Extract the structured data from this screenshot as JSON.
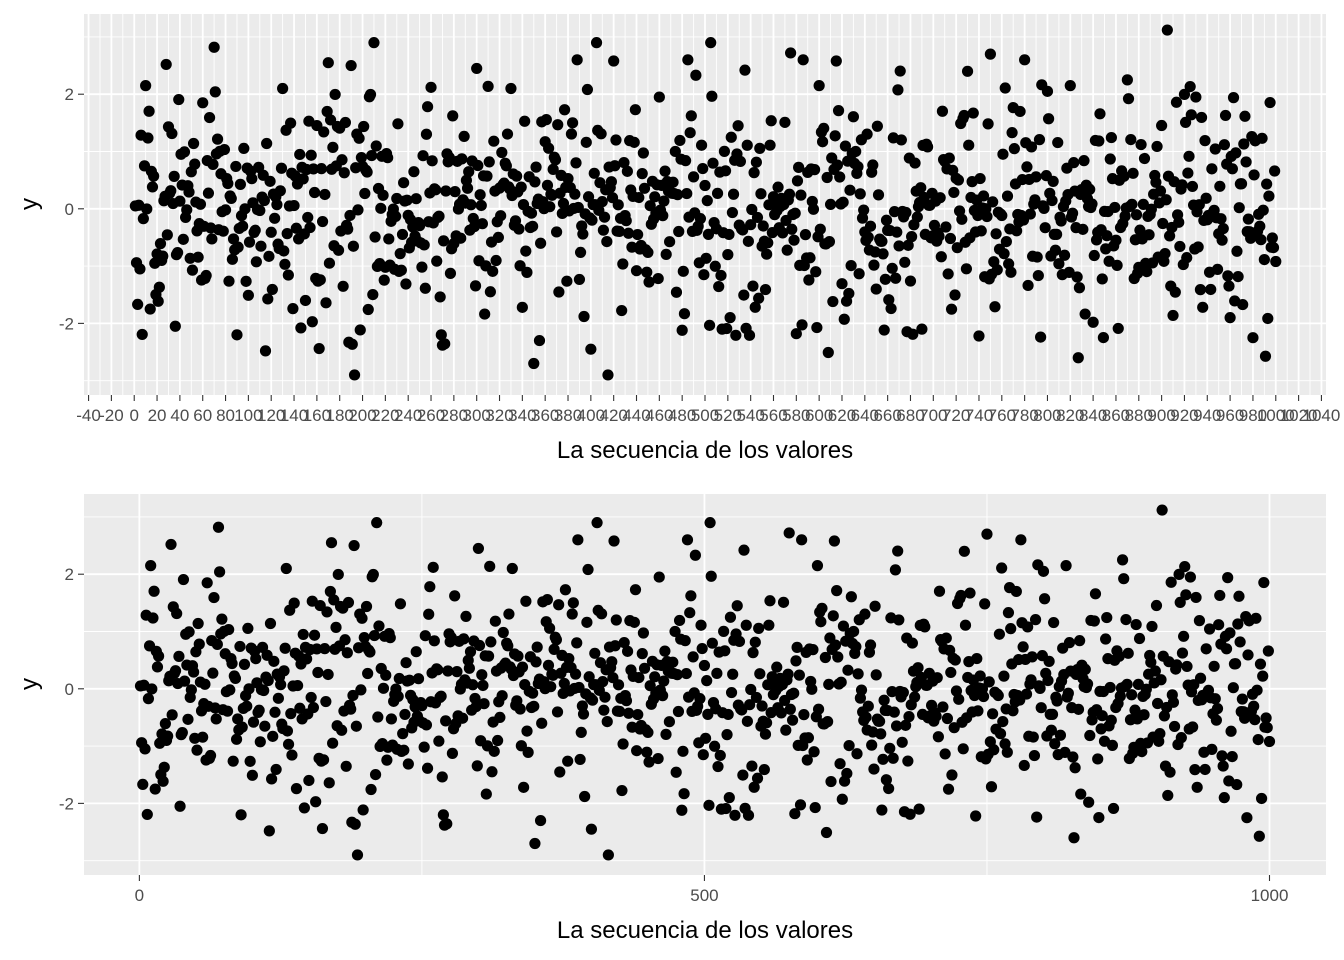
{
  "chart_data": [
    {
      "type": "scatter",
      "xlabel": "La secuencia de los valores",
      "ylabel": "y",
      "xlim": [
        -44,
        1044
      ],
      "ylim": [
        -3.25,
        3.4
      ],
      "x_ticks": [
        -40,
        -20,
        0,
        20,
        40,
        60,
        80,
        100,
        120,
        140,
        160,
        180,
        200,
        220,
        240,
        260,
        280,
        300,
        320,
        340,
        360,
        380,
        400,
        420,
        440,
        460,
        480,
        500,
        520,
        540,
        560,
        580,
        600,
        620,
        640,
        660,
        680,
        700,
        720,
        740,
        760,
        780,
        800,
        820,
        840,
        860,
        880,
        900,
        920,
        940,
        960,
        980,
        1000,
        1020,
        1040
      ],
      "x_tick_labels": [
        "-40",
        "-20",
        "0",
        "20",
        "40",
        "60",
        "80",
        "100",
        "120",
        "140",
        "160",
        "180",
        "200",
        "220",
        "240",
        "260",
        "280",
        "300",
        "320",
        "340",
        "360",
        "380",
        "400",
        "420",
        "440",
        "460",
        "480",
        "500",
        "520",
        "540",
        "560",
        "580",
        "600",
        "620",
        "640",
        "660",
        "680",
        "700",
        "720",
        "740",
        "760",
        "780",
        "800",
        "820",
        "840",
        "860",
        "880",
        "900",
        "920",
        "940",
        "960",
        "980",
        "1000",
        "1020",
        "1040"
      ],
      "x_minor_step": 10,
      "y_ticks": [
        -2,
        0,
        2
      ],
      "y_tick_labels": [
        "-2",
        "0",
        "2"
      ],
      "grid": true,
      "n_points": 1000,
      "series": [
        {
          "x_range": [
            1,
            1000
          ],
          "y_sample": [
            [
              1,
              0.05
            ],
            [
              5,
              -1.05
            ],
            [
              10,
              2.15
            ],
            [
              14,
              -1.75
            ],
            [
              24,
              -0.9
            ],
            [
              28,
              2.52
            ],
            [
              36,
              -2.05
            ],
            [
              60,
              1.85
            ],
            [
              70,
              2.82
            ],
            [
              90,
              -2.2
            ],
            [
              115,
              -2.48
            ],
            [
              130,
              2.1
            ],
            [
              150,
              -1.6
            ],
            [
              170,
              2.55
            ],
            [
              190,
              2.5
            ],
            [
              193,
              -2.9
            ],
            [
              210,
              2.9
            ],
            [
              260,
              2.12
            ],
            [
              270,
              -2.38
            ],
            [
              300,
              2.45
            ],
            [
              330,
              2.1
            ],
            [
              340,
              -1.72
            ],
            [
              350,
              -2.7
            ],
            [
              355,
              -2.3
            ],
            [
              400,
              -2.45
            ],
            [
              405,
              2.9
            ],
            [
              415,
              -2.9
            ],
            [
              420,
              2.58
            ],
            [
              460,
              1.95
            ],
            [
              480,
              -2.12
            ],
            [
              485,
              2.6
            ],
            [
              505,
              2.9
            ],
            [
              515,
              -2.1
            ],
            [
              535,
              2.42
            ],
            [
              575,
              2.72
            ],
            [
              580,
              -2.18
            ],
            [
              600,
              2.15
            ],
            [
              690,
              -2.1
            ],
            [
              730,
              2.4
            ],
            [
              740,
              -2.22
            ],
            [
              750,
              2.7
            ],
            [
              780,
              2.6
            ],
            [
              800,
              2.05
            ],
            [
              820,
              2.15
            ],
            [
              840,
              -1.98
            ],
            [
              870,
              2.25
            ],
            [
              905,
              3.12
            ],
            [
              930,
              1.95
            ],
            [
              960,
              -1.9
            ],
            [
              980,
              -2.25
            ],
            [
              1000,
              -0.92
            ]
          ]
        }
      ]
    },
    {
      "type": "scatter",
      "xlabel": "La secuencia de los valores",
      "ylabel": "y",
      "xlim": [
        -49,
        1050
      ],
      "ylim": [
        -3.25,
        3.4
      ],
      "x_ticks": [
        0,
        500,
        1000
      ],
      "x_tick_labels": [
        "0",
        "500",
        "1000"
      ],
      "x_minor_step": 250,
      "y_ticks": [
        -2,
        0,
        2
      ],
      "y_tick_labels": [
        "-2",
        "0",
        "2"
      ],
      "grid": true,
      "n_points": 1000,
      "series": [
        {
          "x_range": [
            1,
            1000
          ],
          "y_sample": [
            [
              1,
              0.05
            ],
            [
              5,
              -1.05
            ],
            [
              10,
              2.15
            ],
            [
              14,
              -1.75
            ],
            [
              24,
              -0.9
            ],
            [
              28,
              2.52
            ],
            [
              36,
              -2.05
            ],
            [
              60,
              1.85
            ],
            [
              70,
              2.82
            ],
            [
              90,
              -2.2
            ],
            [
              115,
              -2.48
            ],
            [
              130,
              2.1
            ],
            [
              150,
              -1.6
            ],
            [
              170,
              2.55
            ],
            [
              190,
              2.5
            ],
            [
              193,
              -2.9
            ],
            [
              210,
              2.9
            ],
            [
              260,
              2.12
            ],
            [
              270,
              -2.38
            ],
            [
              300,
              2.45
            ],
            [
              330,
              2.1
            ],
            [
              340,
              -1.72
            ],
            [
              350,
              -2.7
            ],
            [
              355,
              -2.3
            ],
            [
              400,
              -2.45
            ],
            [
              405,
              2.9
            ],
            [
              415,
              -2.9
            ],
            [
              420,
              2.58
            ],
            [
              460,
              1.95
            ],
            [
              480,
              -2.12
            ],
            [
              485,
              2.6
            ],
            [
              505,
              2.9
            ],
            [
              515,
              -2.1
            ],
            [
              535,
              2.42
            ],
            [
              575,
              2.72
            ],
            [
              580,
              -2.18
            ],
            [
              600,
              2.15
            ],
            [
              690,
              -2.1
            ],
            [
              730,
              2.4
            ],
            [
              740,
              -2.22
            ],
            [
              750,
              2.7
            ],
            [
              780,
              2.6
            ],
            [
              800,
              2.05
            ],
            [
              820,
              2.15
            ],
            [
              840,
              -1.98
            ],
            [
              870,
              2.25
            ],
            [
              905,
              3.12
            ],
            [
              930,
              1.95
            ],
            [
              960,
              -1.9
            ],
            [
              980,
              -2.25
            ],
            [
              1000,
              -0.92
            ]
          ]
        }
      ]
    }
  ]
}
